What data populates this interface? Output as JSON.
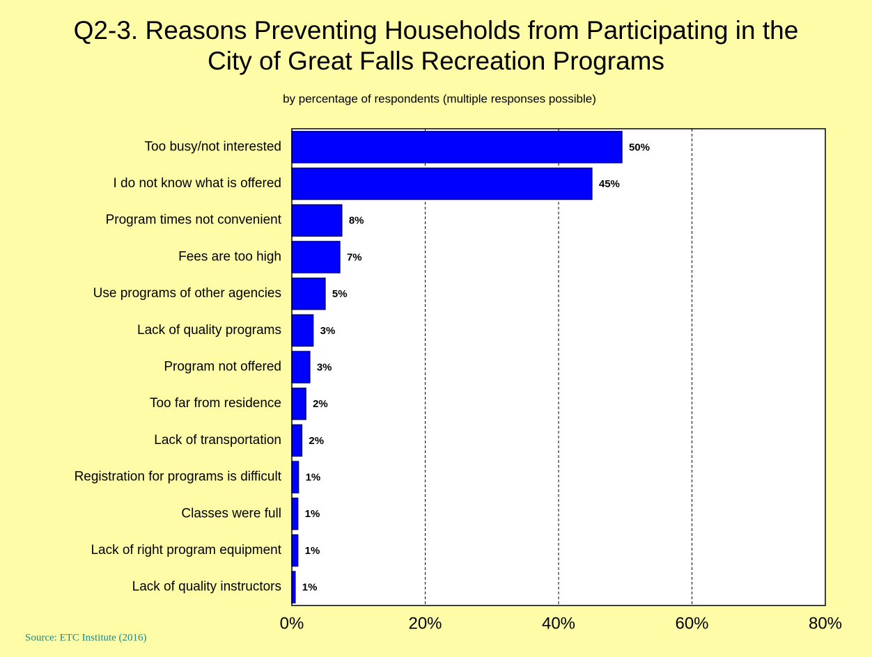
{
  "chart_data": {
    "type": "barh",
    "title": "Q2-3. Reasons Preventing Households from Participating in the City of Great Falls Recreation Programs",
    "subtitle": "by percentage of respondents (multiple responses possible)",
    "source": "Source: ETC Institute (2016)",
    "categories": [
      "Too busy/not interested",
      "I do not know what is offered",
      "Program times not convenient",
      "Fees are too high",
      "Use programs of other agencies",
      "Lack of quality programs",
      "Program not offered",
      "Too far from residence",
      "Lack of transportation",
      "Registration for programs is difficult",
      "Classes were full",
      "Lack of right program equipment",
      "Lack of quality instructors"
    ],
    "values": [
      49.5,
      45.0,
      7.5,
      7.2,
      5.0,
      3.2,
      2.7,
      2.1,
      1.5,
      1.0,
      0.9,
      0.9,
      0.5
    ],
    "value_labels": [
      "50%",
      "45%",
      "8%",
      "7%",
      "5%",
      "3%",
      "3%",
      "2%",
      "2%",
      "1%",
      "1%",
      "1%",
      "1%"
    ],
    "color": "#0000ff",
    "xlim": [
      0,
      80
    ],
    "xticks": [
      {
        "value": 0,
        "label": "0%"
      },
      {
        "value": 20,
        "label": "20%"
      },
      {
        "value": 40,
        "label": "40%"
      },
      {
        "value": 60,
        "label": "60%"
      },
      {
        "value": 80,
        "label": "80%"
      }
    ],
    "grid": true
  }
}
